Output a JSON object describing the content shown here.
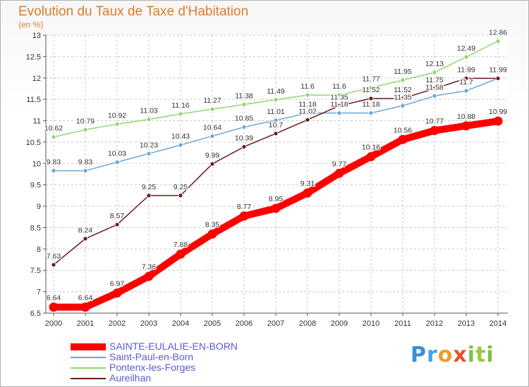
{
  "title": "Evolution du Taux de Taxe d'Habitation",
  "subtitle": "(en %)",
  "brand": {
    "text": "Proxiti",
    "letters": [
      "P",
      "r",
      "o",
      "x",
      "i",
      "t",
      "i"
    ]
  },
  "chart_data": {
    "type": "line",
    "x": [
      2000,
      2001,
      2002,
      2003,
      2004,
      2005,
      2006,
      2007,
      2008,
      2009,
      2010,
      2011,
      2012,
      2013,
      2014
    ],
    "ylim": [
      6.5,
      13
    ],
    "yticks": [
      "6.5",
      "7",
      "7.5",
      "8",
      "8.5",
      "9",
      "9.5",
      "10",
      "10.5",
      "11",
      "11.5",
      "12",
      "12.5",
      "13"
    ],
    "grid": true,
    "legend_placement": "bottom-left",
    "series": [
      {
        "name": "SAINTE-EULALIE-EN-BORN",
        "color": "#ff0000",
        "values": [
          6.64,
          6.64,
          6.97,
          7.36,
          7.88,
          8.35,
          8.77,
          8.95,
          9.31,
          9.77,
          10.16,
          10.56,
          10.77,
          10.88,
          10.99
        ],
        "labels": [
          "6.64",
          "6.64",
          "6.97",
          "7.36",
          "7.88",
          "8.35",
          "8.77",
          "8.95",
          "9.31",
          "9.77",
          "10.16",
          "10.56",
          "10.77",
          "10.88",
          "10.99"
        ]
      },
      {
        "name": "Saint-Paul-en-Born",
        "color": "#6aa6d8",
        "values": [
          9.83,
          9.83,
          10.03,
          10.23,
          10.43,
          10.64,
          10.85,
          11.01,
          11.18,
          11.18,
          11.18,
          11.35,
          11.58,
          11.7,
          11.99
        ],
        "labels": [
          "9.83",
          "9.83",
          "10.03",
          "10.23",
          "10.43",
          "10.64",
          "10.85",
          "11.01",
          "11.18",
          "11.18",
          "11.18",
          "11.35",
          "11.58",
          "11.7",
          "11.99"
        ]
      },
      {
        "name": "Pontenx-les-Forges",
        "color": "#8fd86a",
        "values": [
          10.62,
          10.79,
          10.92,
          11.03,
          11.16,
          11.27,
          11.38,
          11.49,
          11.6,
          11.6,
          11.77,
          11.95,
          12.13,
          12.49,
          12.86
        ],
        "labels": [
          "10.62",
          "10.79",
          "10.92",
          "11.03",
          "11.16",
          "11.27",
          "11.38",
          "11.49",
          "11.6",
          "11.6",
          "11.77",
          "11.95",
          "12.13",
          "12.49",
          "12.86"
        ]
      },
      {
        "name": "Aureilhan",
        "color": "#6b1a1a",
        "values": [
          7.63,
          8.24,
          8.57,
          9.25,
          9.25,
          9.99,
          10.39,
          10.7,
          11.02,
          11.35,
          11.52,
          11.52,
          11.75,
          11.99,
          11.99
        ],
        "labels": [
          "7.63",
          "8.24",
          "8.57",
          "9.25",
          "9.25",
          "9.99",
          "10.39",
          "10.7",
          "11.02",
          "11.35",
          "11.52",
          "11.52",
          "11.75",
          "11.99",
          "11.99"
        ]
      }
    ]
  }
}
